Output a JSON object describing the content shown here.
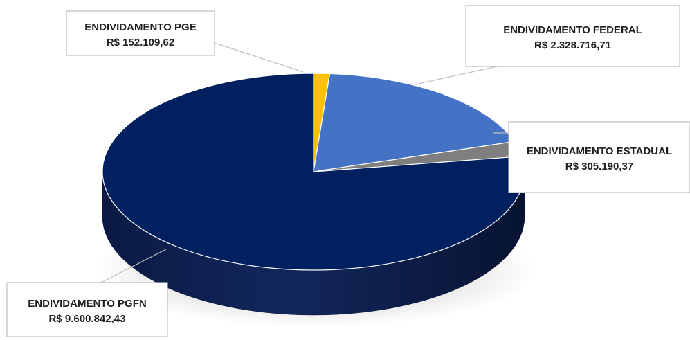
{
  "chart_data": {
    "type": "pie",
    "style": "3d",
    "title": "",
    "legend": "none",
    "slices": [
      {
        "name": "ENDIVIDAMENTO PGE",
        "value": 152109.62,
        "value_label": "R$ 152.109,62",
        "color": "#FFC000"
      },
      {
        "name": "ENDIVIDAMENTO FEDERAL",
        "value": 2328716.71,
        "value_label": "R$ 2.328.716,71",
        "color": "#4472C4"
      },
      {
        "name": "ENDIVIDAMENTO ESTADUAL",
        "value": 305190.37,
        "value_label": "R$ 305.190,37",
        "color": "#7F7F7F"
      },
      {
        "name": "ENDIVIDAMENTO PGFN",
        "value": 9600842.43,
        "value_label": "R$ 9.600.842,43",
        "color": "#002060"
      }
    ]
  }
}
